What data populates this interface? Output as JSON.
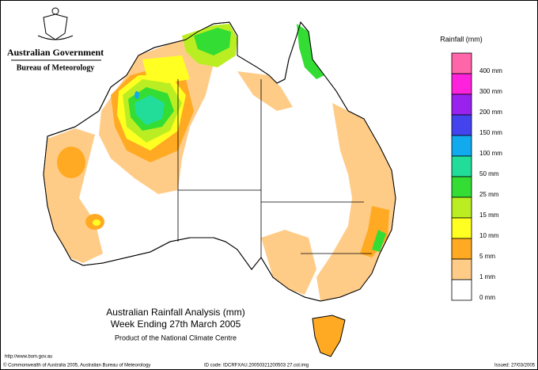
{
  "header": {
    "agency": "Australian Government",
    "bureau": "Bureau of Meteorology"
  },
  "legend": {
    "title": "Rainfall (mm)",
    "items": [
      {
        "label": "400 mm",
        "color": "#ff66aa"
      },
      {
        "label": "300 mm",
        "color": "#ff22dd"
      },
      {
        "label": "200 mm",
        "color": "#9922ee"
      },
      {
        "label": "150 mm",
        "color": "#4444ee"
      },
      {
        "label": "100 mm",
        "color": "#11aaee"
      },
      {
        "label": "50 mm",
        "color": "#22dd99"
      },
      {
        "label": "25 mm",
        "color": "#33dd33"
      },
      {
        "label": "15 mm",
        "color": "#bbee22"
      },
      {
        "label": "10 mm",
        "color": "#ffff22"
      },
      {
        "label": "5 mm",
        "color": "#ffaa22"
      },
      {
        "label": "1 mm",
        "color": "#ffcc88"
      },
      {
        "label": "0 mm",
        "color": "#ffffff"
      }
    ]
  },
  "caption": {
    "title": "Australian Rainfall Analysis (mm)",
    "subtitle": "Week Ending 27th March 2005",
    "product": "Product of the National Climate Centre"
  },
  "footer": {
    "url": "http://www.bom.gov.au",
    "copyright": "© Commonwealth of Australia 2005, Australian Bureau of Meteorology",
    "id_code": "ID code: IDCRFXAU.20050321200503 27.col.img",
    "issued": "Issued: 27/03/2005"
  }
}
